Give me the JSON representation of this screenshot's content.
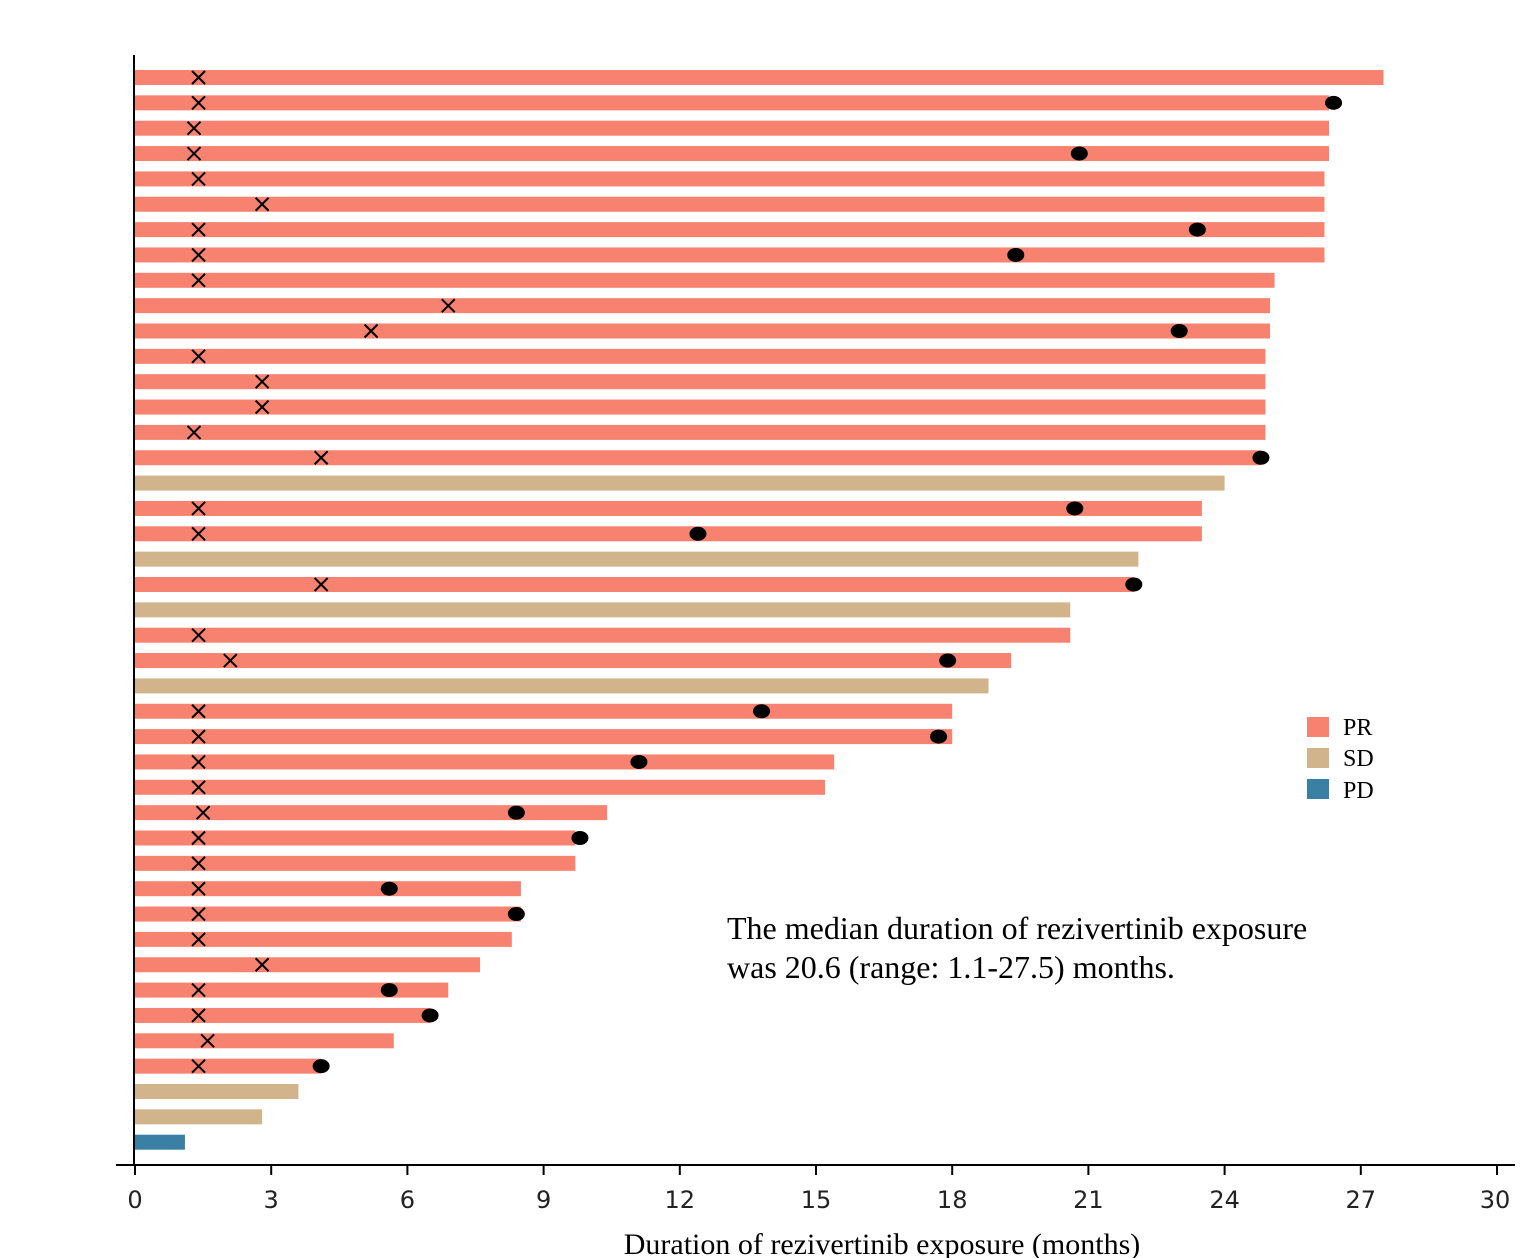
{
  "chart_data": {
    "type": "swimmer",
    "xlabel": "Duration of rezivertinib exposure (months)",
    "xlim": [
      0,
      30
    ],
    "xticks": [
      0,
      3,
      6,
      9,
      12,
      15,
      18,
      21,
      24,
      27,
      30
    ],
    "legend": [
      {
        "label": "PR",
        "color": "#f7826f"
      },
      {
        "label": "SD",
        "color": "#d2b48c"
      },
      {
        "label": "PD",
        "color": "#3a80a5"
      }
    ],
    "legend_position": "right",
    "annotation_lines": [
      "The median duration of rezivertinib exposure",
      "was 20.6 (range: 1.1-27.5) months."
    ],
    "markers": {
      "cross": "response onset",
      "dot": "event"
    },
    "patients": [
      {
        "response": "PR",
        "duration": 27.5,
        "cross": 1.4,
        "dot": null
      },
      {
        "response": "PR",
        "duration": 26.3,
        "cross": 1.4,
        "dot": 26.4
      },
      {
        "response": "PR",
        "duration": 26.3,
        "cross": 1.3,
        "dot": null
      },
      {
        "response": "PR",
        "duration": 26.3,
        "cross": 1.3,
        "dot": 20.8
      },
      {
        "response": "PR",
        "duration": 26.2,
        "cross": 1.4,
        "dot": null
      },
      {
        "response": "PR",
        "duration": 26.2,
        "cross": 2.8,
        "dot": null
      },
      {
        "response": "PR",
        "duration": 26.2,
        "cross": 1.4,
        "dot": 23.4
      },
      {
        "response": "PR",
        "duration": 26.2,
        "cross": 1.4,
        "dot": 19.4
      },
      {
        "response": "PR",
        "duration": 25.1,
        "cross": 1.4,
        "dot": null
      },
      {
        "response": "PR",
        "duration": 25.0,
        "cross": 6.9,
        "dot": null
      },
      {
        "response": "PR",
        "duration": 25.0,
        "cross": 5.2,
        "dot": 23.0
      },
      {
        "response": "PR",
        "duration": 24.9,
        "cross": 1.4,
        "dot": null
      },
      {
        "response": "PR",
        "duration": 24.9,
        "cross": 2.8,
        "dot": null
      },
      {
        "response": "PR",
        "duration": 24.9,
        "cross": 2.8,
        "dot": null
      },
      {
        "response": "PR",
        "duration": 24.9,
        "cross": 1.3,
        "dot": null
      },
      {
        "response": "PR",
        "duration": 24.8,
        "cross": 4.1,
        "dot": 24.8
      },
      {
        "response": "SD",
        "duration": 24.0,
        "cross": null,
        "dot": null
      },
      {
        "response": "PR",
        "duration": 23.5,
        "cross": 1.4,
        "dot": 20.7
      },
      {
        "response": "PR",
        "duration": 23.5,
        "cross": 1.4,
        "dot": 12.4
      },
      {
        "response": "SD",
        "duration": 22.1,
        "cross": null,
        "dot": null
      },
      {
        "response": "PR",
        "duration": 22.0,
        "cross": 4.1,
        "dot": 22.0
      },
      {
        "response": "SD",
        "duration": 20.6,
        "cross": null,
        "dot": null
      },
      {
        "response": "PR",
        "duration": 20.6,
        "cross": 1.4,
        "dot": null
      },
      {
        "response": "PR",
        "duration": 19.3,
        "cross": 2.1,
        "dot": 17.9
      },
      {
        "response": "SD",
        "duration": 18.8,
        "cross": null,
        "dot": null
      },
      {
        "response": "PR",
        "duration": 18.0,
        "cross": 1.4,
        "dot": 13.8
      },
      {
        "response": "PR",
        "duration": 18.0,
        "cross": 1.4,
        "dot": 17.7
      },
      {
        "response": "PR",
        "duration": 15.4,
        "cross": 1.4,
        "dot": 11.1
      },
      {
        "response": "PR",
        "duration": 15.2,
        "cross": 1.4,
        "dot": null
      },
      {
        "response": "PR",
        "duration": 10.4,
        "cross": 1.5,
        "dot": 8.4
      },
      {
        "response": "PR",
        "duration": 9.7,
        "cross": 1.4,
        "dot": 9.8
      },
      {
        "response": "PR",
        "duration": 9.7,
        "cross": 1.4,
        "dot": null
      },
      {
        "response": "PR",
        "duration": 8.5,
        "cross": 1.4,
        "dot": 5.6
      },
      {
        "response": "PR",
        "duration": 8.5,
        "cross": 1.4,
        "dot": 8.4
      },
      {
        "response": "PR",
        "duration": 8.3,
        "cross": 1.4,
        "dot": null
      },
      {
        "response": "PR",
        "duration": 7.6,
        "cross": 2.8,
        "dot": null
      },
      {
        "response": "PR",
        "duration": 6.9,
        "cross": 1.4,
        "dot": 5.6
      },
      {
        "response": "PR",
        "duration": 6.5,
        "cross": 1.4,
        "dot": 6.5
      },
      {
        "response": "PR",
        "duration": 5.7,
        "cross": 1.6,
        "dot": null
      },
      {
        "response": "PR",
        "duration": 4.1,
        "cross": 1.4,
        "dot": 4.1
      },
      {
        "response": "SD",
        "duration": 3.6,
        "cross": null,
        "dot": null
      },
      {
        "response": "SD",
        "duration": 2.8,
        "cross": null,
        "dot": null
      },
      {
        "response": "PD",
        "duration": 1.1,
        "cross": null,
        "dot": null
      }
    ]
  }
}
